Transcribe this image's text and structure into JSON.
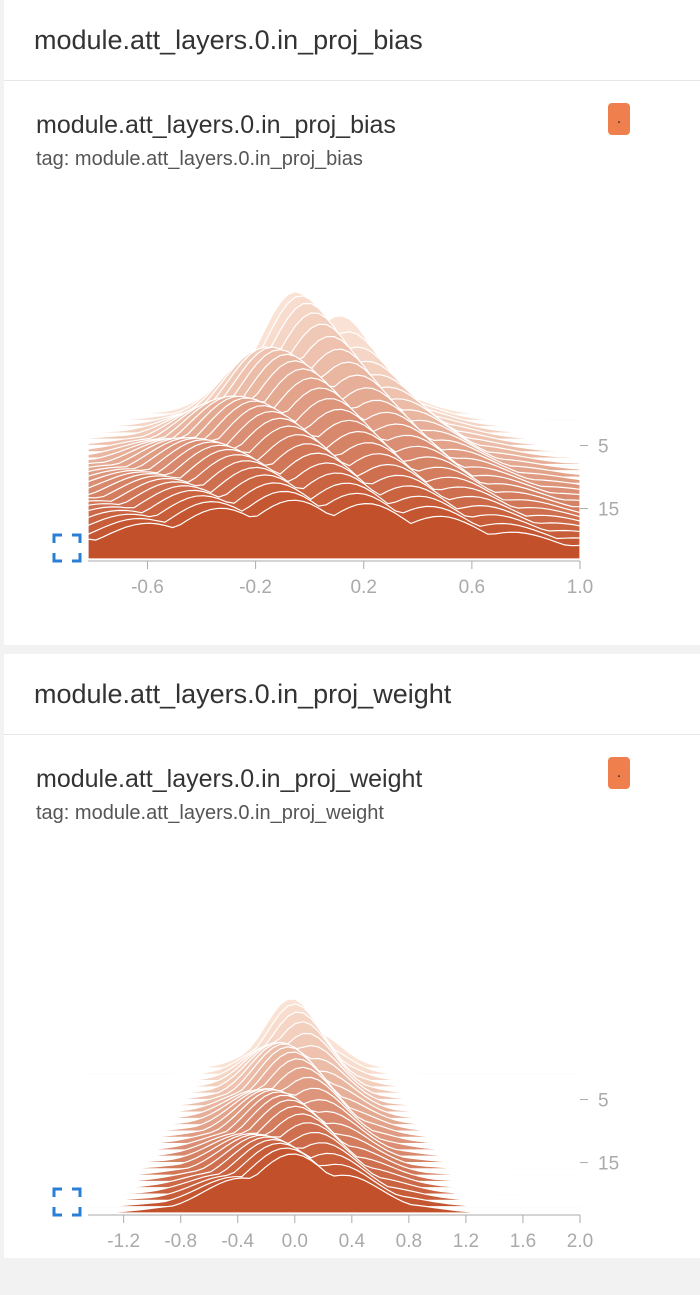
{
  "sections": [
    {
      "header": "module.att_layers.0.in_proj_bias",
      "card": {
        "title": "module.att_layers.0.in_proj_bias",
        "tag": "tag: module.att_layers.0.in_proj_bias",
        "badge": "."
      }
    },
    {
      "header": "module.att_layers.0.in_proj_weight",
      "card": {
        "title": "module.att_layers.0.in_proj_weight",
        "tag": "tag: module.att_layers.0.in_proj_weight",
        "badge": "."
      }
    }
  ],
  "colors": {
    "accent": "#ef7f4c",
    "fill_dark": "#c2502a",
    "fill_light": "#fae2d4",
    "axis": "#aaaaaa",
    "fullscreen_icon": "#2a7fd4"
  },
  "chart_data": [
    {
      "type": "area",
      "title": "module.att_layers.0.in_proj_bias",
      "xlim": [
        -0.82,
        1.0
      ],
      "x_ticks": [
        -0.6,
        -0.2,
        0.2,
        0.6,
        1.0
      ],
      "x_tick_labels": [
        "-0.6",
        "-0.2",
        "0.2",
        "0.6",
        "1.0"
      ],
      "y_ticks": [
        5,
        15
      ],
      "y_tick_labels": [
        "5",
        "15"
      ],
      "steps_range": [
        0,
        23
      ],
      "series": [
        {
          "step": 0,
          "peak": 2.2,
          "peak_center": 0.0,
          "spread": 0.2
        },
        {
          "step": 23,
          "peak": 1.0,
          "peak_center": 0.0,
          "spread": 0.62
        }
      ]
    },
    {
      "type": "area",
      "title": "module.att_layers.0.in_proj_weight",
      "xlim": [
        -1.45,
        2.0
      ],
      "x_ticks": [
        -1.2,
        -0.8,
        -0.4,
        0.0,
        0.4,
        0.8,
        1.2,
        1.6,
        2.0
      ],
      "x_tick_labels": [
        "-1.2",
        "-0.8",
        "-0.4",
        "0.0",
        "0.4",
        "0.8",
        "1.2",
        "1.6",
        "2.0"
      ],
      "y_ticks": [
        5,
        15
      ],
      "y_tick_labels": [
        "5",
        "15"
      ],
      "steps_range": [
        0,
        23
      ],
      "series": [
        {
          "step": 0,
          "peak": 1.2,
          "peak_center": 0.0,
          "spread": 0.22
        },
        {
          "step": 23,
          "peak": 1.0,
          "peak_center": 0.0,
          "spread": 0.45
        }
      ]
    }
  ]
}
